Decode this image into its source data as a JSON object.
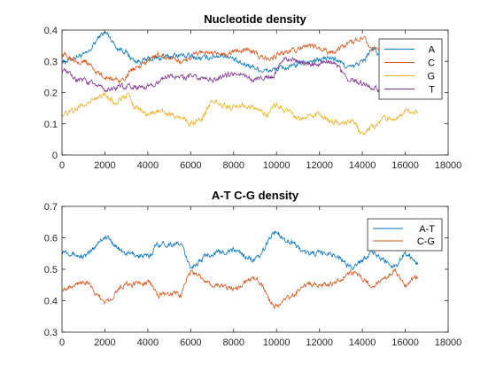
{
  "chart_data": [
    {
      "type": "line",
      "title": "Nucleotide density",
      "xlim": [
        0,
        18000
      ],
      "ylim": [
        0,
        0.4
      ],
      "xticks": [
        0,
        2000,
        4000,
        6000,
        8000,
        10000,
        12000,
        14000,
        16000,
        18000
      ],
      "yticks": [
        0,
        0.1,
        0.2,
        0.3,
        0.4
      ],
      "xticklabels": [
        "0",
        "2000",
        "4000",
        "6000",
        "8000",
        "10000",
        "12000",
        "14000",
        "16000",
        "18000"
      ],
      "yticklabels": [
        "0",
        "0.1",
        "0.2",
        "0.3",
        "0.4"
      ],
      "grid": false,
      "legend_position": "top-right",
      "series": [
        {
          "name": "A",
          "color": "#0072BD",
          "x": [
            0,
            1000,
            2000,
            2700,
            3500,
            4500,
            5500,
            6500,
            7500,
            8500,
            9500,
            10500,
            11500,
            12500,
            13500,
            14000,
            14500,
            15000,
            16000,
            16600
          ],
          "values": [
            0.3,
            0.32,
            0.39,
            0.34,
            0.3,
            0.31,
            0.32,
            0.31,
            0.32,
            0.29,
            0.27,
            0.28,
            0.3,
            0.31,
            0.28,
            0.3,
            0.34,
            0.3,
            0.28,
            0.29
          ]
        },
        {
          "name": "C",
          "color": "#D95319",
          "x": [
            0,
            1000,
            2000,
            2700,
            3500,
            4500,
            5500,
            6500,
            7500,
            8500,
            9500,
            10500,
            11500,
            12500,
            13500,
            14000,
            14500,
            15000,
            16000,
            16600
          ],
          "values": [
            0.32,
            0.3,
            0.25,
            0.24,
            0.28,
            0.32,
            0.3,
            0.33,
            0.32,
            0.34,
            0.31,
            0.33,
            0.35,
            0.33,
            0.36,
            0.38,
            0.34,
            0.33,
            0.33,
            0.33
          ]
        },
        {
          "name": "G",
          "color": "#EDB120",
          "x": [
            0,
            500,
            1000,
            1500,
            2000,
            2500,
            3000,
            3500,
            4000,
            4500,
            5000,
            5500,
            6000,
            6500,
            7000,
            7500,
            8000,
            8500,
            9000,
            9500,
            10000,
            10500,
            11000,
            11500,
            12000,
            12500,
            13000,
            13500,
            14000,
            14500,
            15000,
            15500,
            16000,
            16600
          ],
          "values": [
            0.13,
            0.14,
            0.16,
            0.18,
            0.19,
            0.17,
            0.19,
            0.15,
            0.13,
            0.14,
            0.13,
            0.12,
            0.1,
            0.12,
            0.17,
            0.16,
            0.15,
            0.16,
            0.15,
            0.13,
            0.16,
            0.14,
            0.12,
            0.12,
            0.13,
            0.11,
            0.1,
            0.11,
            0.07,
            0.09,
            0.12,
            0.12,
            0.14,
            0.14
          ]
        },
        {
          "name": "T",
          "color": "#7E2F8E",
          "x": [
            0,
            800,
            1500,
            2000,
            3000,
            4000,
            5000,
            6000,
            7000,
            8000,
            9000,
            9700,
            10500,
            11500,
            12500,
            13500,
            14000,
            14500,
            15000,
            16000,
            16600
          ],
          "values": [
            0.27,
            0.24,
            0.23,
            0.21,
            0.22,
            0.22,
            0.25,
            0.25,
            0.24,
            0.26,
            0.24,
            0.25,
            0.31,
            0.29,
            0.3,
            0.24,
            0.23,
            0.22,
            0.2,
            0.2,
            0.21
          ]
        }
      ]
    },
    {
      "type": "line",
      "title": "A-T C-G density",
      "xlim": [
        0,
        18000
      ],
      "ylim": [
        0.3,
        0.7
      ],
      "xticks": [
        0,
        2000,
        4000,
        6000,
        8000,
        10000,
        12000,
        14000,
        16000,
        18000
      ],
      "yticks": [
        0.3,
        0.4,
        0.5,
        0.6,
        0.7
      ],
      "xticklabels": [
        "0",
        "2000",
        "4000",
        "6000",
        "8000",
        "10000",
        "12000",
        "14000",
        "16000",
        "18000"
      ],
      "yticklabels": [
        "0.3",
        "0.4",
        "0.5",
        "0.6",
        "0.7"
      ],
      "grid": false,
      "legend_position": "top-right",
      "series": [
        {
          "name": "A-T",
          "color": "#0072BD",
          "x": [
            0,
            1000,
            2000,
            3000,
            4000,
            4500,
            5500,
            6000,
            7000,
            8000,
            9000,
            10000,
            10500,
            11500,
            12500,
            13500,
            14500,
            15000,
            15500,
            16000,
            16600
          ],
          "values": [
            0.56,
            0.54,
            0.6,
            0.55,
            0.54,
            0.58,
            0.58,
            0.51,
            0.55,
            0.56,
            0.53,
            0.62,
            0.59,
            0.55,
            0.55,
            0.51,
            0.55,
            0.53,
            0.51,
            0.55,
            0.52
          ]
        },
        {
          "name": "C-G",
          "color": "#D95319",
          "x": [
            0,
            1000,
            2000,
            3000,
            4000,
            4500,
            5500,
            6000,
            7000,
            8000,
            9000,
            10000,
            10500,
            11500,
            12500,
            13500,
            14500,
            15000,
            15500,
            16000,
            16600
          ],
          "values": [
            0.44,
            0.46,
            0.4,
            0.45,
            0.46,
            0.42,
            0.42,
            0.49,
            0.45,
            0.44,
            0.47,
            0.38,
            0.41,
            0.45,
            0.45,
            0.49,
            0.45,
            0.47,
            0.49,
            0.45,
            0.48
          ]
        }
      ]
    }
  ]
}
